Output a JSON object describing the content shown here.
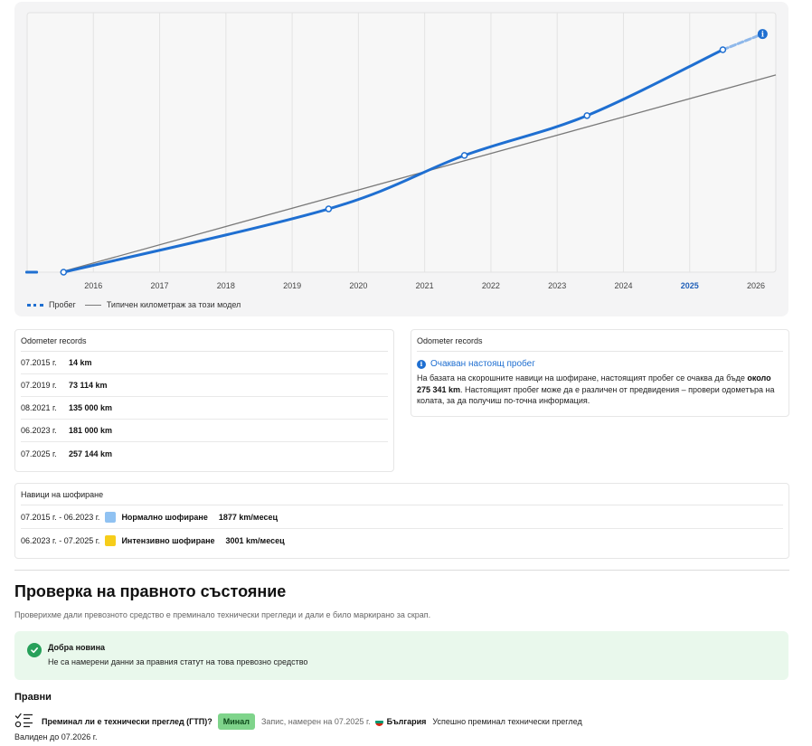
{
  "chart_data": {
    "type": "line",
    "x_ticks": [
      "2016",
      "2017",
      "2018",
      "2019",
      "2020",
      "2021",
      "2022",
      "2023",
      "2024",
      "2025",
      "2026"
    ],
    "highlight_tick": "2025",
    "series": [
      {
        "name": "Пробег",
        "points": [
          {
            "x": 2015.55,
            "y": 14
          },
          {
            "x": 2019.55,
            "y": 73114
          },
          {
            "x": 2021.6,
            "y": 135000
          },
          {
            "x": 2023.45,
            "y": 181000
          },
          {
            "x": 2025.5,
            "y": 257144
          }
        ],
        "projection": [
          {
            "x": 2025.5,
            "y": 257144
          },
          {
            "x": 2026.1,
            "y": 275341
          }
        ],
        "color": "#1f6fd1"
      },
      {
        "name": "Типичен километраж за този модел",
        "points": [
          {
            "x": 2015.5,
            "y": 0
          },
          {
            "x": 2026.3,
            "y": 228000
          }
        ],
        "color": "#7a7a7a"
      }
    ],
    "xlim": [
      2015.0,
      2026.3
    ],
    "ylim": [
      0,
      300000
    ],
    "grid": true,
    "legend_position": "bottom-left"
  },
  "legend": {
    "mileage": "Пробег",
    "typical": "Типичен километраж за този модел"
  },
  "odometer": {
    "title": "Odometer records",
    "records": [
      {
        "date": "07.2015 г.",
        "value": "14 km"
      },
      {
        "date": "07.2019 г.",
        "value": "73 114 km"
      },
      {
        "date": "08.2021 г.",
        "value": "135 000 km"
      },
      {
        "date": "06.2023 г.",
        "value": "181 000 km"
      },
      {
        "date": "07.2025 г.",
        "value": "257 144 km"
      }
    ]
  },
  "expected": {
    "title": "Odometer records",
    "heading": "Очакван настоящ пробег",
    "text_1": "На базата на скорошните навици на шофиране, настоящият пробег се очаква да бъде ",
    "text_bold": "около 275 341 km",
    "text_2": ". Настоящият пробег може да е различен от предвидения – провери одометъра на колата, за да получиш по-точна информация."
  },
  "habits": {
    "title": "Навици на шофиране",
    "rows": [
      {
        "period": "07.2015 г. - 06.2023 г.",
        "label": "Нормално шофиране",
        "value": "1877 km/месец",
        "color": "#90c2f2"
      },
      {
        "period": "06.2023 г. - 07.2025 г.",
        "label": "Интензивно шофиране",
        "value": "3001 km/месец",
        "color": "#f6cd1a"
      }
    ]
  },
  "legal": {
    "title": "Проверка на правното състояние",
    "subtitle": "Проверихме дали превозното средство е преминало технически прегледи и дали е било маркирано за скрап.",
    "good_title": "Добра новина",
    "good_text": "Не са намерени данни за правния статут на това превозно средство",
    "rights_title": "Правни",
    "inspection_question": "Преминал ли е технически преглед (ГТП)?",
    "badge": "Минал",
    "record_note": "Запис, намерен на 07.2025 г.",
    "country": "България",
    "status": "Успешно преминал технически преглед",
    "valid_until": "Валиден до 07.2026 г."
  }
}
